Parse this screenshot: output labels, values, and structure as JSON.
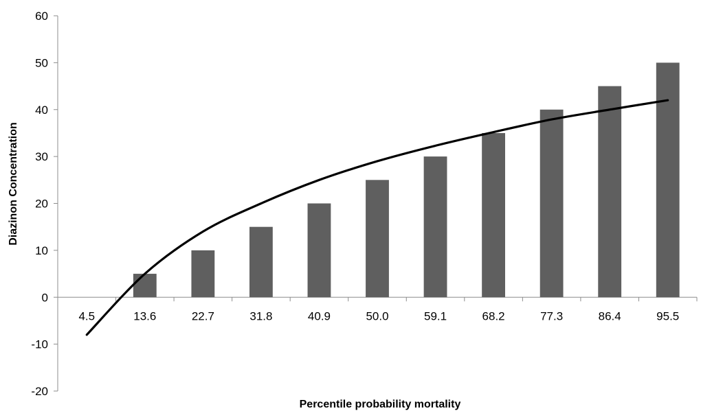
{
  "chart_data": {
    "type": "bar",
    "title": "",
    "xlabel": "Percentile probability  mortality",
    "ylabel": "Diazinon Concentration",
    "categories": [
      "4.5",
      "13.6",
      "22.7",
      "31.8",
      "40.9",
      "50.0",
      "59.1",
      "68.2",
      "77.3",
      "86.4",
      "95.5"
    ],
    "series": [
      {
        "values": [
          0,
          5,
          10,
          15,
          20,
          25,
          30,
          35,
          40,
          45,
          50
        ],
        "color": "#5f5f5f"
      }
    ],
    "trendline": {
      "type": "logarithmic",
      "color": "#000000",
      "values": [
        -8,
        5,
        14,
        20,
        25,
        29,
        32.3,
        35.2,
        37.9,
        40,
        42
      ]
    },
    "ylim": [
      -20,
      60
    ],
    "yticks": [
      "-20",
      "-10",
      "0",
      "10",
      "20",
      "30",
      "40",
      "50",
      "60"
    ],
    "grid": false,
    "legend": "none"
  }
}
